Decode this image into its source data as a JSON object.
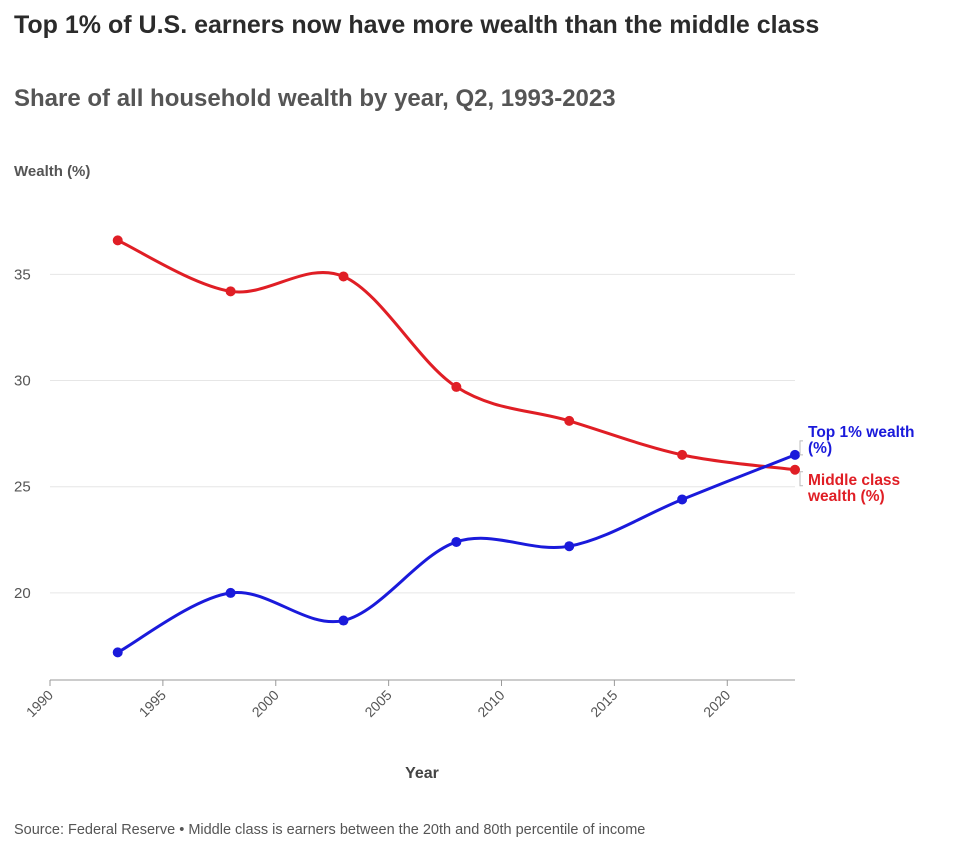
{
  "title": "Top 1% of U.S. earners now have more wealth than the middle class",
  "subtitle": "Share of all household wealth by year, Q2, 1993-2023",
  "footer": "Source: Federal Reserve • Middle class is earners between the 20th and 80th percentile of income",
  "colors": {
    "top1": "#1a1adb",
    "middle": "#e01e25",
    "grid": "#e6e6e6",
    "axis": "#999999"
  },
  "chart_data": {
    "type": "line",
    "xlabel": "Year",
    "ylabel": "Wealth (%)",
    "xlim": [
      1990,
      2023
    ],
    "ylim": [
      15.9,
      38.5
    ],
    "xticks": [
      1990,
      1995,
      2000,
      2005,
      2010,
      2015,
      2020
    ],
    "yticks": [
      20,
      25,
      30,
      35
    ],
    "grid": true,
    "series": [
      {
        "name": "Top 1% wealth (%)",
        "color": "#1a1adb",
        "x": [
          1993,
          1998,
          2003,
          2008,
          2013,
          2018,
          2023
        ],
        "y": [
          17.2,
          20.0,
          18.7,
          22.4,
          22.2,
          24.4,
          26.5
        ]
      },
      {
        "name": "Middle class wealth (%)",
        "color": "#e01e25",
        "x": [
          1993,
          1998,
          2003,
          2008,
          2013,
          2018,
          2023
        ],
        "y": [
          36.6,
          34.2,
          34.9,
          29.7,
          28.1,
          26.5,
          25.8
        ]
      }
    ]
  }
}
